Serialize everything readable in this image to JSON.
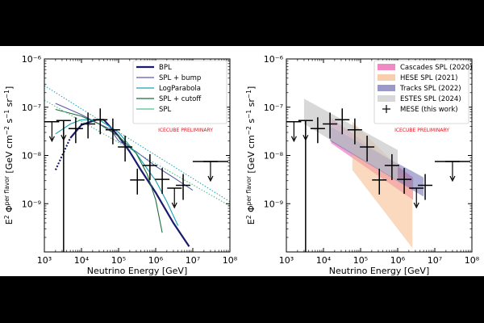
{
  "figure": {
    "xlabel": "Neutrino Energy [GeV]",
    "ylabel": "E²ν Φ per flavor ν+ν̄ [GeV cm⁻² s⁻¹ sr⁻¹]",
    "ylabel_main": "E",
    "ylabel_sup": "2",
    "ylabel_sub": "ν",
    "ylabel_phi": " Φ",
    "ylabel_phisup": "per flavor",
    "ylabel_phisub": "ν+ν̄",
    "ylabel_units": " [GeV cm",
    "ylabel_e1": "−2",
    "ylabel_s": " s",
    "ylabel_e2": "−1",
    "ylabel_sr": " sr",
    "ylabel_e3": "−1",
    "ylabel_end": "]",
    "preliminary": "ICECUBE PRELIMINARY",
    "colors": {
      "bpl": "#1a1a6e",
      "bump": "#5a5aaa",
      "logpar": "#19a3b3",
      "cutoff": "#1e6b3a",
      "spl": "#4fc08d"
    }
  },
  "chart_data": [
    {
      "type": "line",
      "panel": "left",
      "xscale": "log",
      "yscale": "log",
      "xlim": [
        1000,
        100000000
      ],
      "ylim": [
        1e-10,
        1e-06
      ],
      "xticks": [
        "10³",
        "10⁴",
        "10⁵",
        "10⁶",
        "10⁷",
        "10⁸"
      ],
      "yticks": [
        "10⁻⁹",
        "10⁻⁸",
        "10⁻⁷",
        "10⁻⁶"
      ],
      "xlabel": "Neutrino Energy [GeV]",
      "legend": [
        "BPL",
        "SPL + bump",
        "LogParabola",
        "SPL + cutoff",
        "SPL"
      ],
      "legend_position": "top-right",
      "series": [
        {
          "name": "BPL",
          "x": [
            2000,
            5000,
            10000,
            25000,
            40000,
            100000,
            200000,
            400000,
            1000000,
            3000000,
            8000000
          ],
          "y": [
            5e-09,
            2.3e-08,
            4.3e-08,
            5.5e-08,
            5.5e-08,
            2.5e-08,
            1.2e-08,
            5e-09,
            1.7e-09,
            4e-10,
            1.3e-10
          ]
        },
        {
          "name": "SPL + bump",
          "x": [
            2000,
            10000,
            30000,
            60000,
            100000,
            300000,
            1000000,
            3000000,
            10000000
          ],
          "y": [
            1.2e-07,
            7e-08,
            4.5e-08,
            3.5e-08,
            2e-08,
            1.2e-08,
            6e-09,
            3.5e-09,
            1.9e-09
          ]
        },
        {
          "name": "LogParabola",
          "x": [
            2000,
            5000,
            10000,
            30000,
            100000,
            300000,
            1000000,
            2000000,
            4000000
          ],
          "y": [
            2.8e-08,
            4.5e-08,
            5.5e-08,
            5.5e-08,
            3e-08,
            1.1e-08,
            3e-09,
            1.1e-09,
            3.5e-10
          ]
        },
        {
          "name": "SPL + cutoff",
          "x": [
            2000,
            10000,
            30000,
            100000,
            300000,
            600000,
            1000000,
            1500000
          ],
          "y": [
            9e-08,
            6.5e-08,
            4.5e-08,
            2.5e-08,
            1.1e-08,
            4e-09,
            1.2e-09,
            2.5e-10
          ]
        },
        {
          "name": "SPL",
          "x": [
            1000,
            100000000
          ],
          "y": [
            1.4e-07,
            9e-10
          ]
        },
        {
          "name": "SPL (dotted)",
          "x": [
            1000,
            100000000
          ],
          "y": [
            2.8e-07,
            1.1e-09
          ]
        }
      ],
      "points": [
        {
          "x": 1600,
          "y": 5e-08,
          "ul": true
        },
        {
          "x": 3300,
          "y": 5.3e-08,
          "ul": true
        },
        {
          "x": 7000,
          "y": 3.6e-08
        },
        {
          "x": 15000,
          "y": 4.5e-08
        },
        {
          "x": 32000,
          "y": 5.5e-08
        },
        {
          "x": 70000,
          "y": 3.4e-08
        },
        {
          "x": 150000,
          "y": 1.5e-08
        },
        {
          "x": 320000,
          "y": 3.1e-09
        },
        {
          "x": 700000,
          "y": 6.2e-09
        },
        {
          "x": 1500000,
          "y": 3.2e-09
        },
        {
          "x": 3200000,
          "y": 2.1e-09,
          "ul": true
        },
        {
          "x": 5500000,
          "y": 2.4e-09
        },
        {
          "x": 30000000,
          "y": 7.5e-09,
          "ul": true
        }
      ]
    },
    {
      "type": "area",
      "panel": "right",
      "xscale": "log",
      "yscale": "log",
      "xlim": [
        1000,
        100000000
      ],
      "ylim": [
        1e-10,
        1e-06
      ],
      "xticks": [
        "10³",
        "10⁴",
        "10⁵",
        "10⁶",
        "10⁷",
        "10⁸"
      ],
      "yticks": [
        "10⁻⁹",
        "10⁻⁸",
        "10⁻⁷",
        "10⁻⁶"
      ],
      "xlabel": "Neutrino Energy [GeV]",
      "legend": [
        "Cascades SPL (2020)",
        "HESE SPL (2021)",
        "Tracks SPL (2022)",
        "ESTES SPL (2024)",
        "MESE (this work)"
      ],
      "legend_position": "top-right",
      "series": [
        {
          "name": "Cascades SPL (2020)",
          "color": "#e55aa8",
          "x": [
            16000,
            2600000
          ],
          "upper": [
            6e-08,
            3.5e-09
          ],
          "lower": [
            1.8e-08,
            1.2e-09
          ]
        },
        {
          "name": "HESE SPL (2021)",
          "color": "#f5b98a",
          "x": [
            60000,
            2500000
          ],
          "upper": [
            5e-08,
            3e-09
          ],
          "lower": [
            5e-09,
            1.2e-10
          ]
        },
        {
          "name": "Tracks SPL (2022)",
          "color": "#6e6eb3",
          "x": [
            15000,
            5000000
          ],
          "upper": [
            4e-08,
            3.5e-09
          ],
          "lower": [
            2e-08,
            1.4e-09
          ]
        },
        {
          "name": "ESTES SPL (2024)",
          "color": "#c8c8c8",
          "x": [
            3000,
            1000000
          ],
          "upper": [
            1.5e-07,
            1.3e-08
          ],
          "lower": [
            4.5e-08,
            3e-09
          ]
        }
      ],
      "points": [
        {
          "x": 1600,
          "y": 5e-08,
          "ul": true
        },
        {
          "x": 3300,
          "y": 5.3e-08,
          "ul": true
        },
        {
          "x": 7000,
          "y": 3.6e-08
        },
        {
          "x": 15000,
          "y": 4.5e-08
        },
        {
          "x": 32000,
          "y": 5.5e-08
        },
        {
          "x": 70000,
          "y": 3.4e-08
        },
        {
          "x": 150000,
          "y": 1.5e-08
        },
        {
          "x": 320000,
          "y": 3.1e-09
        },
        {
          "x": 700000,
          "y": 6.2e-09
        },
        {
          "x": 1500000,
          "y": 3.2e-09
        },
        {
          "x": 3200000,
          "y": 2.1e-09,
          "ul": true
        },
        {
          "x": 5500000,
          "y": 2.4e-09
        },
        {
          "x": 30000000,
          "y": 7.5e-09,
          "ul": true
        }
      ]
    }
  ]
}
